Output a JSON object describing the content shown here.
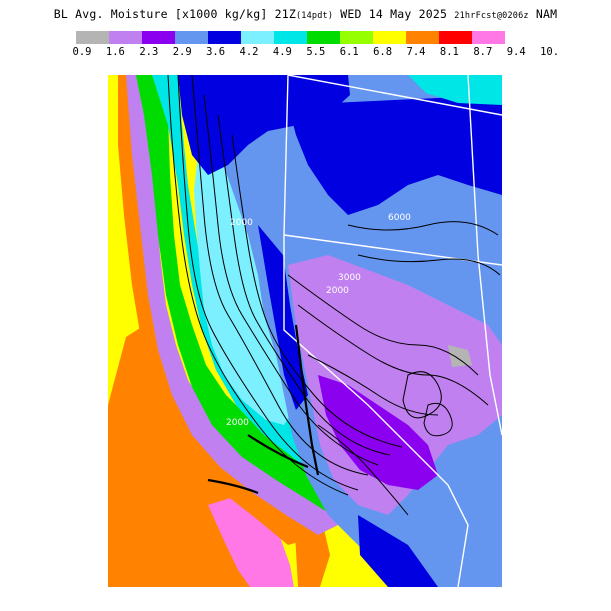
{
  "title": {
    "main": "BL Avg. Moisture [x1000 kg/kg] 21Z",
    "pdt": "(14pdt)",
    "date": " WED 14 May 2025 ",
    "forecast": "21hrFcst@0206z",
    "model": " NAM"
  },
  "legend": {
    "colors": [
      "#b4b4b4",
      "#c080f0",
      "#8c00f0",
      "#6496f0",
      "#0000e1",
      "#7cf0ff",
      "#00e6e6",
      "#00dc00",
      "#96ff00",
      "#ffff00",
      "#ff8200",
      "#ff0000",
      "#ff78e6"
    ],
    "ticks": [
      "0.9",
      "1.6",
      "2.3",
      "2.9",
      "3.6",
      "4.2",
      "4.9",
      "5.5",
      "6.1",
      "6.8",
      "7.4",
      "8.1",
      "8.7",
      "9.4",
      "10."
    ]
  },
  "map": {
    "contour_labels": [
      "2000",
      "2000",
      "6000",
      "3000",
      "2000"
    ]
  }
}
